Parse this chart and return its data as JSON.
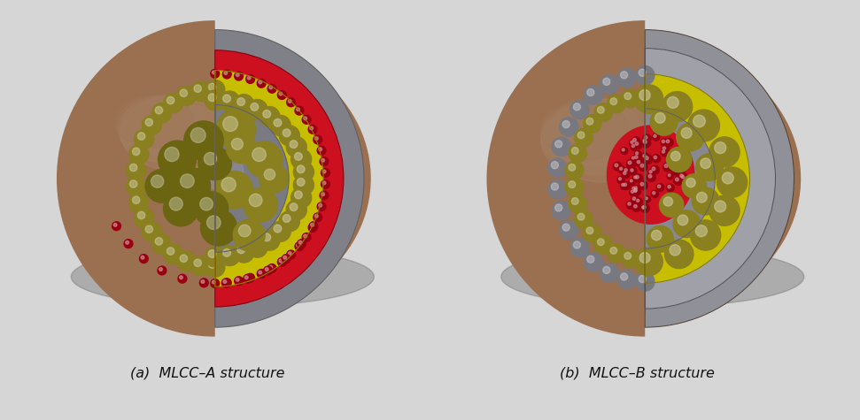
{
  "caption_a": "(a)  MLCC–A structure",
  "caption_b": "(b)  MLCC–B structure",
  "caption_fontsize": 11.5,
  "fig_width": 9.71,
  "fig_height": 4.75,
  "bg_color": "#d6d6d6",
  "panel_bg_a": "#d0d0d0",
  "panel_bg_b": "#d2d2d2",
  "colors": {
    "outer_brown": "#9a7050",
    "outer_brown_light": "#b88c60",
    "outer_brown_dark": "#7a5535",
    "gray_layer": "#a0a0a8",
    "gray_layer_dark": "#787880",
    "yellow_green": "#c8be00",
    "yellow_bright": "#e0d400",
    "olive_dark": "#6b6410",
    "olive_mid": "#8a8020",
    "olive_light": "#b0aa30",
    "red_dark": "#990010",
    "red_mid": "#cc1020",
    "red_light": "#ee3030",
    "shadow_color": "#888888"
  }
}
